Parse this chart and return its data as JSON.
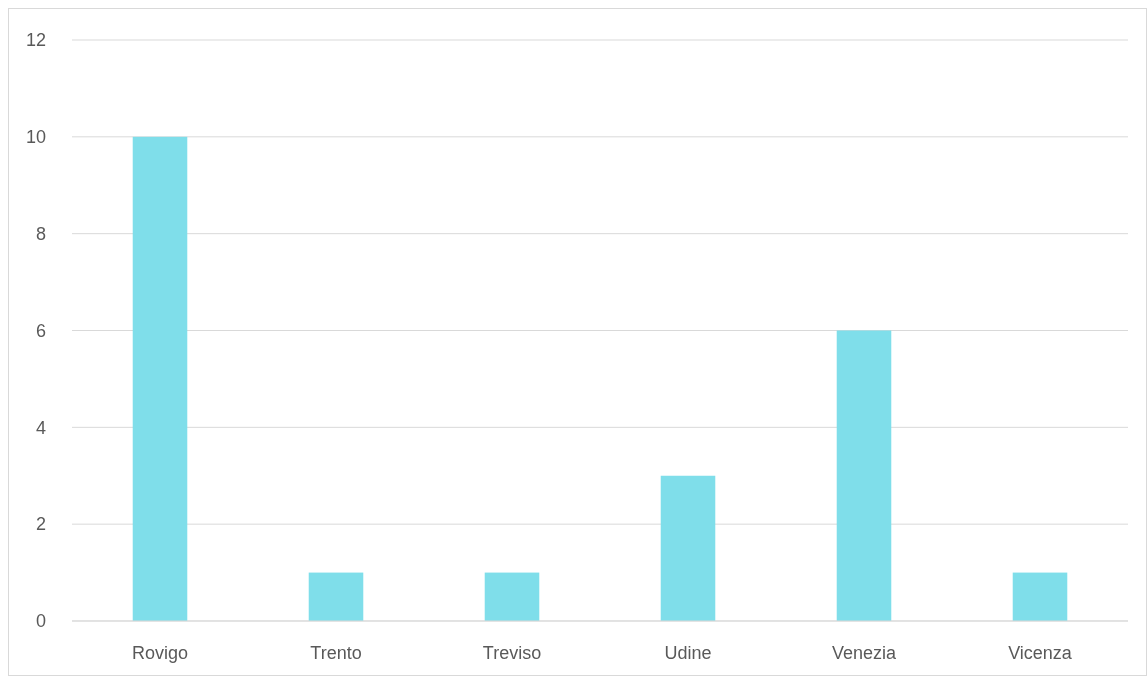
{
  "chart_data": {
    "type": "bar",
    "categories": [
      "Rovigo",
      "Trento",
      "Treviso",
      "Udine",
      "Venezia",
      "Vicenza"
    ],
    "values": [
      10,
      1,
      1,
      3,
      6,
      1
    ],
    "color": "#7fdeea",
    "ylim": [
      0,
      12
    ],
    "yticks": [
      0,
      2,
      4,
      6,
      8,
      10,
      12
    ],
    "grid": "y"
  }
}
